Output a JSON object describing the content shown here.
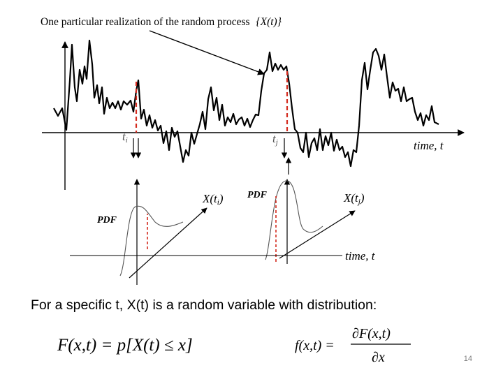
{
  "figure": {
    "title_text": "One particular realization of the random process",
    "title_math": "{X(t)}",
    "marker_ti": "t",
    "marker_ti_sub": "i",
    "marker_tj": "t",
    "marker_tj_sub": "j",
    "time_axis_label": "time, t",
    "pdf_label_left": "PDF",
    "pdf_label_right": "PDF",
    "x_ti_label": "X(t",
    "x_ti_sub": "i",
    "x_tj_label": "X(t",
    "x_tj_sub": "j",
    "lower_time_label": "time, t"
  },
  "caption": {
    "text": "For a specific t, X(t) is a random variable with distribution:"
  },
  "formulas": {
    "cdf": "F(x,t) = p[X(t) ≤ x]",
    "pdf_lhs": "f(x,t) =",
    "pdf_numerator": "∂F(x,t)",
    "pdf_denominator": "∂x"
  },
  "page_number": "14",
  "colors": {
    "marker_lines": "#d42a1e",
    "page_number": "#7f7f7f"
  }
}
